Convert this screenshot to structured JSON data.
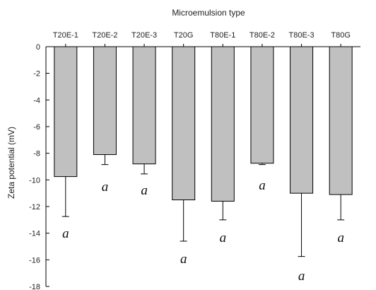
{
  "chart_data": {
    "type": "bar",
    "title": "",
    "xlabel": "Microemulsion type",
    "ylabel": "Zeta potential (mV)",
    "xaxis_position": "top",
    "ylim": [
      -18,
      0
    ],
    "yticks": [
      0,
      -2,
      -4,
      -6,
      -8,
      -10,
      -12,
      -14,
      -16,
      -18
    ],
    "grid": false,
    "bar_color": "#c0c0c0",
    "categories": [
      "T20E-1",
      "T20E-2",
      "T20E-3",
      "T20G",
      "T80E-1",
      "T80E-2",
      "T80E-3",
      "T80G"
    ],
    "values": [
      -9.75,
      -8.1,
      -8.8,
      -11.5,
      -11.6,
      -8.75,
      -11.0,
      -11.1
    ],
    "errors": [
      3.0,
      0.75,
      0.75,
      3.1,
      1.4,
      0.1,
      4.75,
      1.9
    ],
    "annotations": [
      "a",
      "a",
      "a",
      "a",
      "a",
      "a",
      "a",
      "a"
    ]
  }
}
